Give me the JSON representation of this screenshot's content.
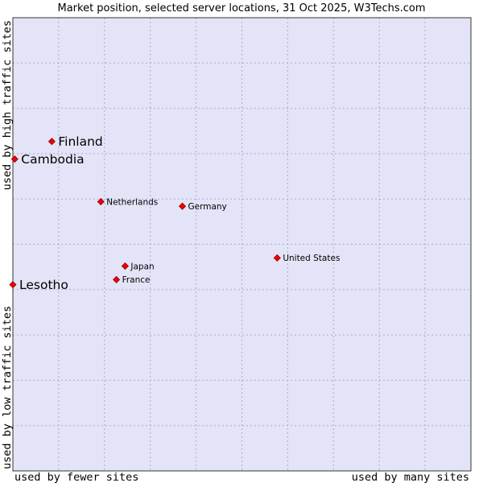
{
  "chart_data": {
    "type": "scatter",
    "title": "Market position, selected server locations, 31 Oct 2025, W3Techs.com",
    "xlabel_left": "used by fewer sites",
    "xlabel_right": "used by many sites",
    "ylabel_top": "used by high traffic sites",
    "ylabel_bottom": "used by low traffic sites",
    "xlim": [
      0,
      100
    ],
    "ylim": [
      0,
      100
    ],
    "grid": true,
    "colors": {
      "plot_bg": "#e4e4f8",
      "grid": "#aaaacc",
      "border": "#333333",
      "marker": "#ee0000",
      "marker_edge": "#990000",
      "text": "#000000"
    },
    "points": [
      {
        "name": "Finland",
        "x": 8.5,
        "y": 72.7,
        "highlight": true
      },
      {
        "name": "Cambodia",
        "x": 0.4,
        "y": 68.8,
        "highlight": true
      },
      {
        "name": "Netherlands",
        "x": 19.2,
        "y": 59.4,
        "highlight": false
      },
      {
        "name": "Germany",
        "x": 37.0,
        "y": 58.4,
        "highlight": false
      },
      {
        "name": "United States",
        "x": 57.7,
        "y": 47.0,
        "highlight": false
      },
      {
        "name": "Japan",
        "x": 24.5,
        "y": 45.2,
        "highlight": false
      },
      {
        "name": "France",
        "x": 22.6,
        "y": 42.2,
        "highlight": false
      },
      {
        "name": "Lesotho",
        "x": 0.0,
        "y": 41.1,
        "highlight": true
      }
    ]
  }
}
